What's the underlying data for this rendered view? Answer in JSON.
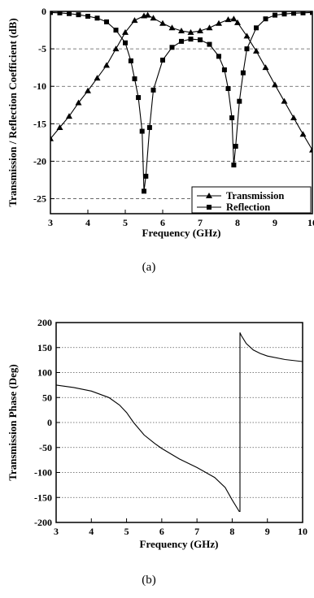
{
  "chart_data": [
    {
      "type": "line",
      "caption": "(a)",
      "xlabel": "Frequency (GHz)",
      "ylabel": "Transmission / Reflection Coefficient (dB)",
      "xlim": [
        3,
        10
      ],
      "ylim": [
        -27,
        0
      ],
      "xticks": [
        3,
        4,
        5,
        6,
        7,
        8,
        9,
        10
      ],
      "yticks": [
        0,
        -5,
        -10,
        -15,
        -20,
        -25
      ],
      "grid": "dashed horizontal",
      "legend": "bottom-right",
      "series": [
        {
          "name": "Transmission",
          "marker": "triangle",
          "x": [
            3.0,
            3.25,
            3.5,
            3.75,
            4.0,
            4.25,
            4.5,
            4.75,
            5.0,
            5.25,
            5.5,
            5.6,
            5.75,
            6.0,
            6.25,
            6.5,
            6.75,
            7.0,
            7.25,
            7.5,
            7.75,
            7.9,
            8.0,
            8.25,
            8.5,
            8.75,
            9.0,
            9.25,
            9.5,
            9.75,
            10.0
          ],
          "y": [
            -17.0,
            -15.5,
            -14.0,
            -12.2,
            -10.6,
            -8.9,
            -7.2,
            -5.0,
            -2.8,
            -1.2,
            -0.6,
            -0.5,
            -0.9,
            -1.6,
            -2.2,
            -2.6,
            -2.8,
            -2.6,
            -2.2,
            -1.6,
            -1.1,
            -1.0,
            -1.5,
            -3.3,
            -5.3,
            -7.5,
            -9.8,
            -12.0,
            -14.2,
            -16.4,
            -18.5
          ]
        },
        {
          "name": "Reflection",
          "marker": "square",
          "x": [
            3.0,
            3.25,
            3.5,
            3.75,
            4.0,
            4.25,
            4.5,
            4.75,
            5.0,
            5.15,
            5.25,
            5.35,
            5.45,
            5.5,
            5.55,
            5.65,
            5.75,
            6.0,
            6.25,
            6.5,
            6.75,
            7.0,
            7.25,
            7.5,
            7.65,
            7.75,
            7.85,
            7.9,
            7.95,
            8.05,
            8.15,
            8.25,
            8.5,
            8.75,
            9.0,
            9.25,
            9.5,
            9.75,
            10.0
          ],
          "y": [
            -0.15,
            -0.2,
            -0.3,
            -0.45,
            -0.65,
            -0.9,
            -1.4,
            -2.5,
            -4.2,
            -6.6,
            -9.0,
            -11.5,
            -16.0,
            -24.0,
            -22.0,
            -15.5,
            -10.5,
            -6.5,
            -4.8,
            -4.0,
            -3.7,
            -3.8,
            -4.4,
            -6.0,
            -7.8,
            -10.3,
            -14.2,
            -20.5,
            -18.0,
            -12.0,
            -8.2,
            -5.0,
            -2.2,
            -1.0,
            -0.5,
            -0.35,
            -0.25,
            -0.2,
            -0.15
          ]
        }
      ]
    },
    {
      "type": "line",
      "caption": "(b)",
      "xlabel": "Frequency (GHz)",
      "ylabel": "Transmission Phase (Deg)",
      "xlim": [
        3,
        10
      ],
      "ylim": [
        -200,
        200
      ],
      "xticks": [
        3,
        4,
        5,
        6,
        7,
        8,
        9,
        10
      ],
      "yticks": [
        200,
        150,
        100,
        50,
        0,
        -50,
        -100,
        -150,
        -200
      ],
      "grid": "dotted horizontal",
      "series": [
        {
          "x": [
            3.0,
            3.5,
            4.0,
            4.5,
            4.8,
            5.0,
            5.2,
            5.5,
            5.8,
            6.0,
            6.5,
            7.0,
            7.5,
            7.8,
            8.0,
            8.2,
            8.22,
            8.25,
            8.4,
            8.6,
            8.8,
            9.0,
            9.5,
            10.0
          ],
          "y": [
            75,
            70,
            63,
            50,
            35,
            20,
            0,
            -25,
            -42,
            -52,
            -73,
            -90,
            -110,
            -130,
            -155,
            -178,
            180,
            175,
            158,
            145,
            138,
            133,
            126,
            122
          ]
        }
      ]
    }
  ]
}
